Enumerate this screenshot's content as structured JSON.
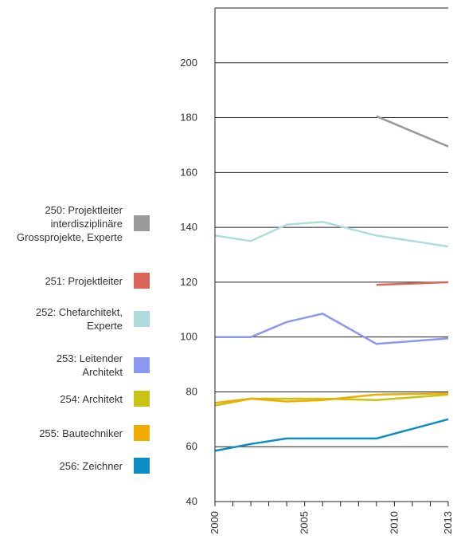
{
  "chart_data": {
    "type": "line",
    "x_ticks": [
      2000,
      2005,
      2010,
      2013
    ],
    "xlim": [
      2000,
      2013
    ],
    "ylim": [
      40,
      220
    ],
    "y_ticks": [
      40,
      60,
      80,
      100,
      120,
      140,
      160,
      180,
      200
    ],
    "grid": true,
    "legend_position": "left",
    "series": [
      {
        "name": "250: Projektleiter interdisziplinäre Grossprojekte, Experte",
        "color": "#999999",
        "x": [
          2009,
          2013
        ],
        "y": [
          180.5,
          169.5
        ]
      },
      {
        "name": "251: Projektleiter",
        "color": "#d9665a",
        "x": [
          2009,
          2013
        ],
        "y": [
          119,
          120
        ]
      },
      {
        "name": "252: Chefarchitekt, Experte",
        "color": "#aedcdc",
        "x": [
          2000,
          2002,
          2004,
          2006,
          2009,
          2013
        ],
        "y": [
          137,
          135,
          141,
          142,
          137,
          133
        ]
      },
      {
        "name": "253: Leitender Architekt",
        "color": "#8b98f0",
        "x": [
          2000,
          2002,
          2004,
          2006,
          2009,
          2013
        ],
        "y": [
          100,
          100,
          105.5,
          108.5,
          97.5,
          99.5
        ]
      },
      {
        "name": "254: Architekt",
        "color": "#c8c315",
        "x": [
          2000,
          2002,
          2004,
          2006,
          2009,
          2013
        ],
        "y": [
          75,
          77.5,
          77.5,
          77.5,
          77,
          79
        ]
      },
      {
        "name": "255: Bautechniker",
        "color": "#f0ad00",
        "x": [
          2000,
          2002,
          2004,
          2006,
          2009,
          2013
        ],
        "y": [
          76,
          77.5,
          76.5,
          77,
          79,
          79.5
        ]
      },
      {
        "name": "256: Zeichner",
        "color": "#0a8ec4",
        "x": [
          2000,
          2002,
          2004,
          2006,
          2009,
          2013
        ],
        "y": [
          58.5,
          61,
          63,
          63,
          63,
          70
        ]
      }
    ]
  }
}
